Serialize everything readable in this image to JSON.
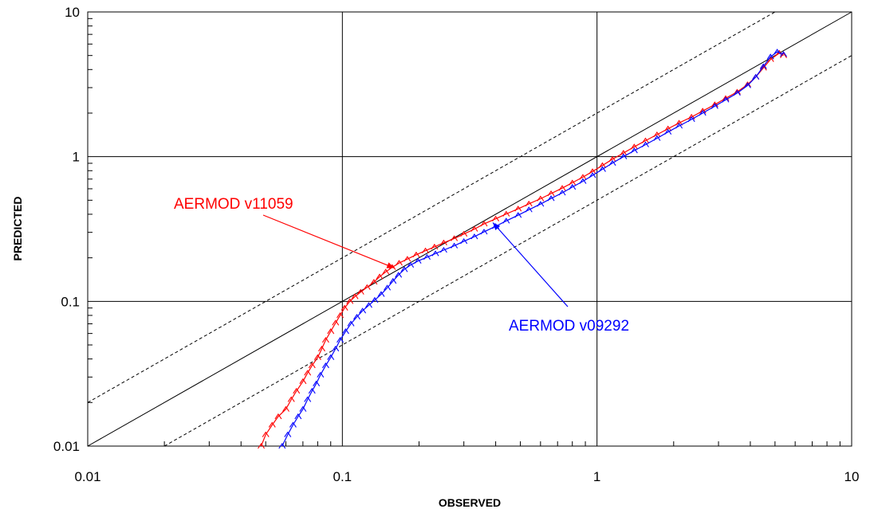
{
  "chart_data": {
    "type": "scatter",
    "xlabel": "OBSERVED",
    "ylabel": "PREDICTED",
    "xscale": "log",
    "yscale": "log",
    "xlim": [
      0.01,
      10
    ],
    "ylim": [
      0.01,
      10
    ],
    "grid": "major gridlines at each decade",
    "x_ticks": [
      "0.01",
      "0.1",
      "1",
      "10"
    ],
    "y_ticks": [
      "0.01",
      "0.1",
      "1",
      "10"
    ],
    "reference_lines": [
      {
        "kind": "solid",
        "factor": 1
      },
      {
        "kind": "dashed",
        "factor": 2
      },
      {
        "kind": "dashed",
        "factor": 0.5
      }
    ],
    "annotations": [
      {
        "text": "AERMOD v11059",
        "color": "#ff0000",
        "arrow_to": [
          0.16,
          0.17
        ]
      },
      {
        "text": "AERMOD v09292",
        "color": "#0000ff",
        "arrow_to": [
          0.39,
          0.35
        ]
      }
    ],
    "series": [
      {
        "label": "AERMOD v11059",
        "color": "#ff0000",
        "points": [
          [
            0.048,
            0.01
          ],
          [
            0.05,
            0.012
          ],
          [
            0.053,
            0.014
          ],
          [
            0.056,
            0.016
          ],
          [
            0.06,
            0.018
          ],
          [
            0.063,
            0.021
          ],
          [
            0.066,
            0.024
          ],
          [
            0.07,
            0.028
          ],
          [
            0.073,
            0.032
          ],
          [
            0.076,
            0.036
          ],
          [
            0.08,
            0.041
          ],
          [
            0.083,
            0.047
          ],
          [
            0.086,
            0.054
          ],
          [
            0.09,
            0.062
          ],
          [
            0.094,
            0.071
          ],
          [
            0.098,
            0.08
          ],
          [
            0.102,
            0.09
          ],
          [
            0.107,
            0.1
          ],
          [
            0.112,
            0.108
          ],
          [
            0.118,
            0.116
          ],
          [
            0.125,
            0.125
          ],
          [
            0.133,
            0.136
          ],
          [
            0.14,
            0.148
          ],
          [
            0.148,
            0.16
          ],
          [
            0.157,
            0.172
          ],
          [
            0.167,
            0.184
          ],
          [
            0.18,
            0.196
          ],
          [
            0.195,
            0.21
          ],
          [
            0.212,
            0.224
          ],
          [
            0.23,
            0.238
          ],
          [
            0.25,
            0.254
          ],
          [
            0.275,
            0.272
          ],
          [
            0.3,
            0.292
          ],
          [
            0.33,
            0.316
          ],
          [
            0.36,
            0.343
          ],
          [
            0.4,
            0.372
          ],
          [
            0.44,
            0.402
          ],
          [
            0.49,
            0.436
          ],
          [
            0.54,
            0.472
          ],
          [
            0.6,
            0.512
          ],
          [
            0.66,
            0.556
          ],
          [
            0.73,
            0.606
          ],
          [
            0.8,
            0.66
          ],
          [
            0.88,
            0.722
          ],
          [
            0.96,
            0.79
          ],
          [
            1.05,
            0.87
          ],
          [
            1.15,
            0.96
          ],
          [
            1.27,
            1.06
          ],
          [
            1.4,
            1.17
          ],
          [
            1.55,
            1.29
          ],
          [
            1.72,
            1.42
          ],
          [
            1.9,
            1.56
          ],
          [
            2.1,
            1.71
          ],
          [
            2.35,
            1.88
          ],
          [
            2.6,
            2.07
          ],
          [
            2.9,
            2.29
          ],
          [
            3.2,
            2.53
          ],
          [
            3.55,
            2.8
          ],
          [
            3.9,
            3.15
          ],
          [
            4.2,
            3.55
          ],
          [
            4.5,
            4.1
          ],
          [
            4.8,
            4.7
          ],
          [
            5.2,
            5.2
          ],
          [
            5.4,
            5.0
          ]
        ]
      },
      {
        "label": "AERMOD v09292",
        "color": "#0000ff",
        "points": [
          [
            0.058,
            0.01
          ],
          [
            0.061,
            0.012
          ],
          [
            0.064,
            0.014
          ],
          [
            0.067,
            0.016
          ],
          [
            0.07,
            0.018
          ],
          [
            0.073,
            0.021
          ],
          [
            0.076,
            0.024
          ],
          [
            0.079,
            0.027
          ],
          [
            0.082,
            0.031
          ],
          [
            0.086,
            0.036
          ],
          [
            0.09,
            0.041
          ],
          [
            0.094,
            0.047
          ],
          [
            0.098,
            0.054
          ],
          [
            0.103,
            0.062
          ],
          [
            0.108,
            0.07
          ],
          [
            0.114,
            0.078
          ],
          [
            0.12,
            0.086
          ],
          [
            0.127,
            0.094
          ],
          [
            0.134,
            0.102
          ],
          [
            0.142,
            0.112
          ],
          [
            0.15,
            0.124
          ],
          [
            0.158,
            0.138
          ],
          [
            0.166,
            0.152
          ],
          [
            0.175,
            0.166
          ],
          [
            0.185,
            0.178
          ],
          [
            0.198,
            0.19
          ],
          [
            0.215,
            0.202
          ],
          [
            0.232,
            0.214
          ],
          [
            0.25,
            0.226
          ],
          [
            0.275,
            0.242
          ],
          [
            0.3,
            0.26
          ],
          [
            0.33,
            0.28
          ],
          [
            0.36,
            0.302
          ],
          [
            0.4,
            0.33
          ],
          [
            0.44,
            0.36
          ],
          [
            0.49,
            0.394
          ],
          [
            0.54,
            0.43
          ],
          [
            0.6,
            0.47
          ],
          [
            0.66,
            0.514
          ],
          [
            0.73,
            0.562
          ],
          [
            0.8,
            0.616
          ],
          [
            0.88,
            0.676
          ],
          [
            0.96,
            0.742
          ],
          [
            1.05,
            0.818
          ],
          [
            1.15,
            0.902
          ],
          [
            1.27,
            1.0
          ],
          [
            1.4,
            1.1
          ],
          [
            1.55,
            1.21
          ],
          [
            1.72,
            1.34
          ],
          [
            1.9,
            1.48
          ],
          [
            2.1,
            1.63
          ],
          [
            2.35,
            1.81
          ],
          [
            2.6,
            2.0
          ],
          [
            2.9,
            2.23
          ],
          [
            3.2,
            2.47
          ],
          [
            3.55,
            2.75
          ],
          [
            3.9,
            3.1
          ],
          [
            4.2,
            3.55
          ],
          [
            4.5,
            4.2
          ],
          [
            4.8,
            4.9
          ],
          [
            5.1,
            5.3
          ],
          [
            5.4,
            5.1
          ]
        ]
      }
    ]
  }
}
